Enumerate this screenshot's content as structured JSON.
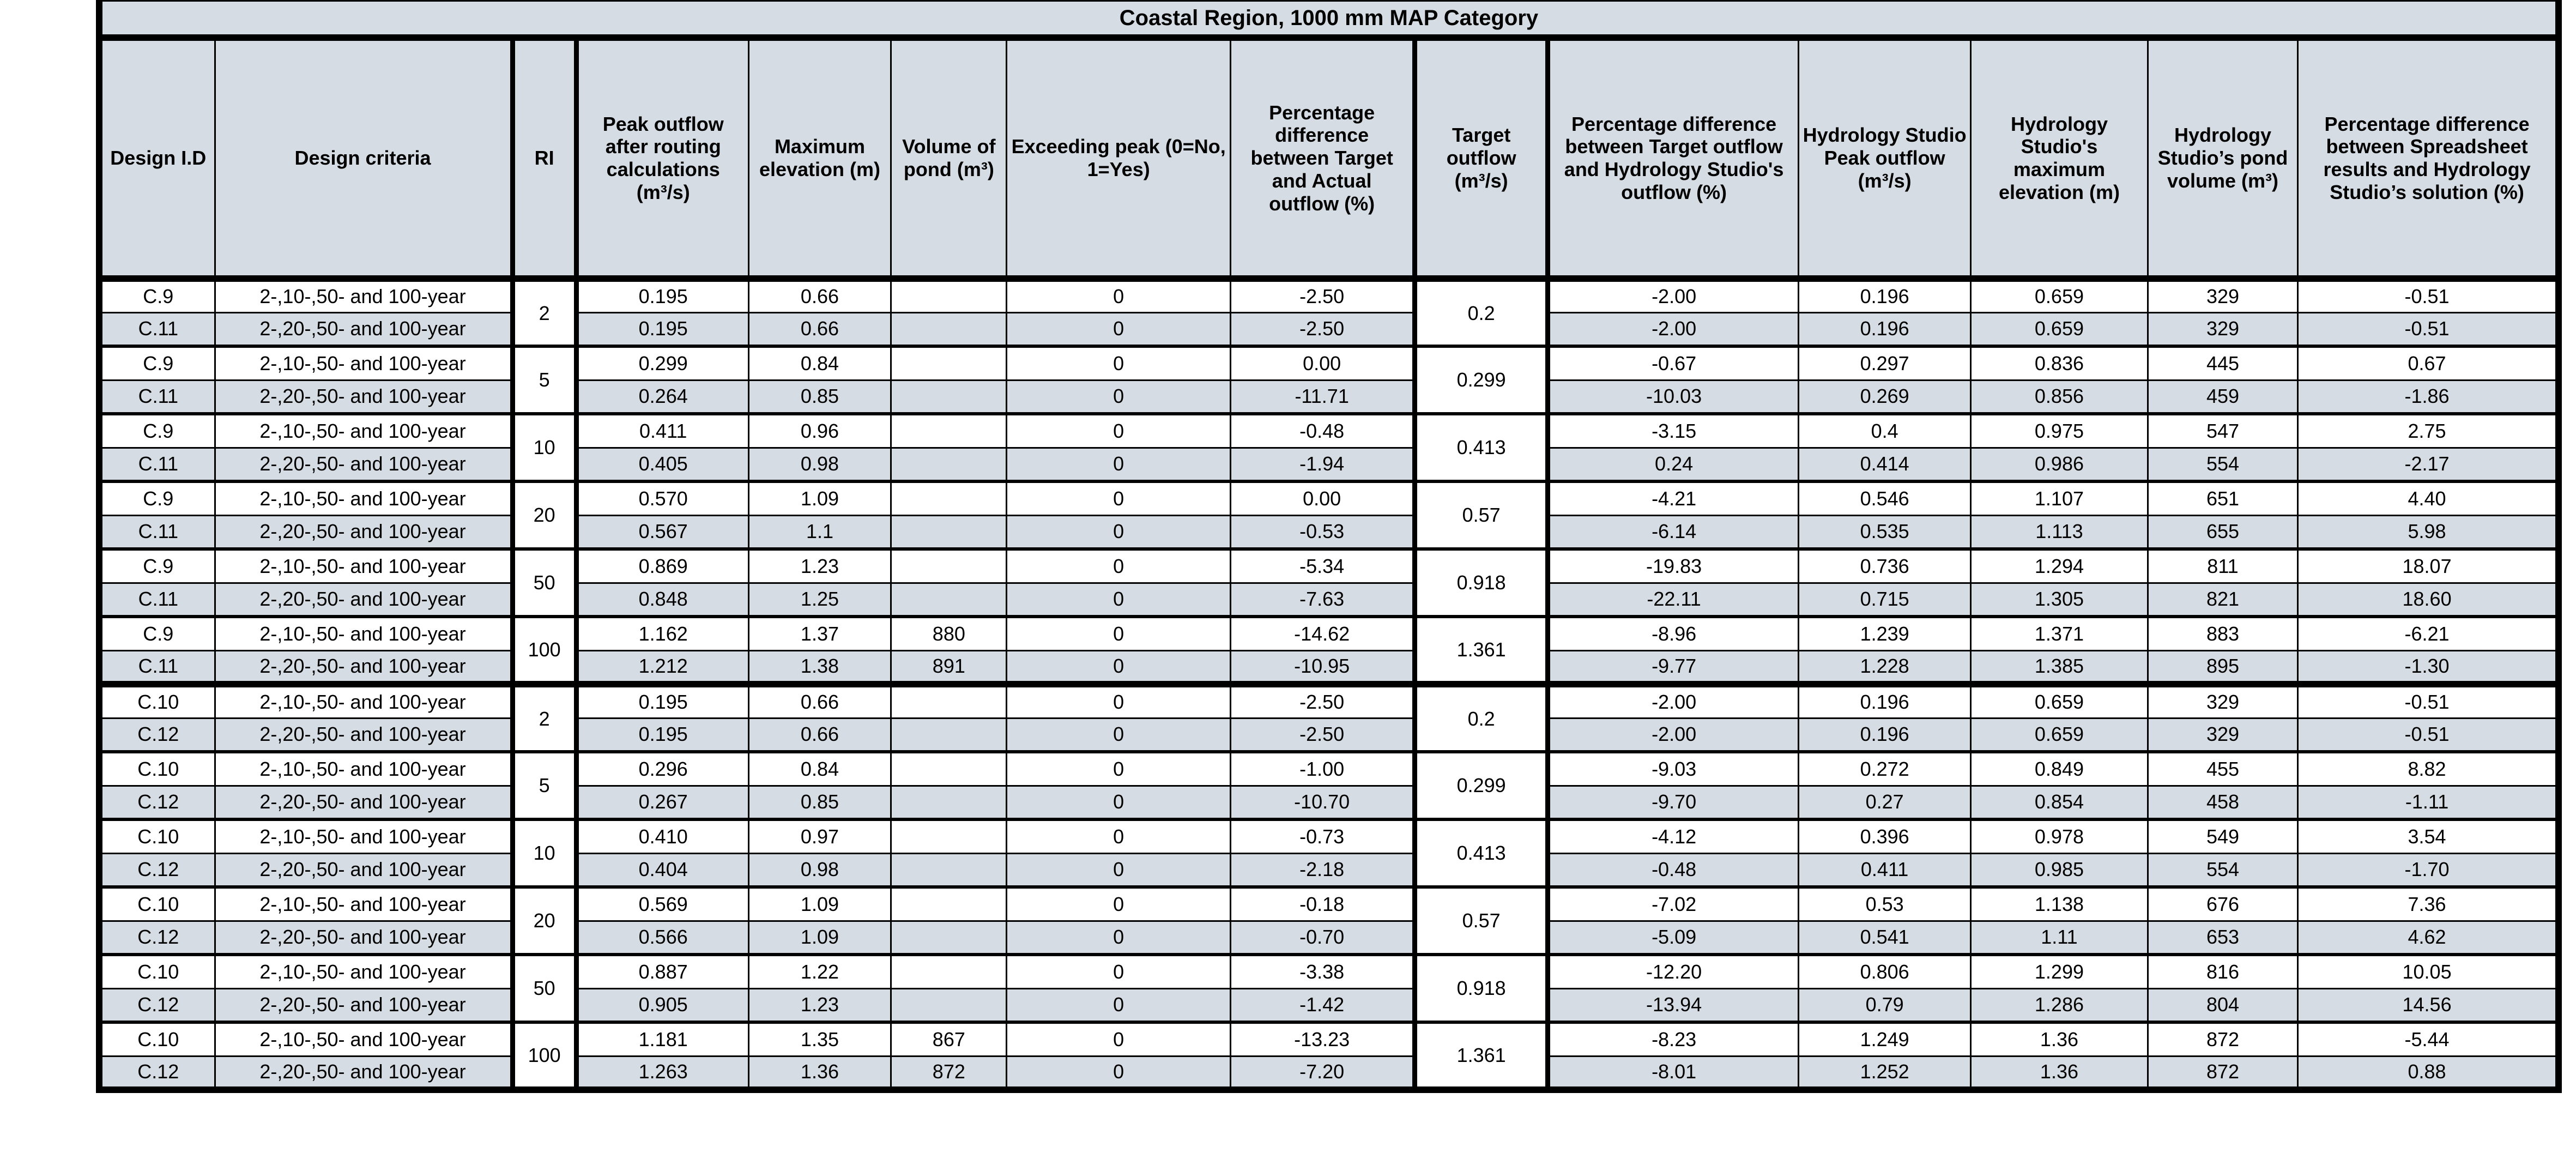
{
  "title": "Coastal Region, 1000 mm MAP Category",
  "colors": {
    "band_fill": "#d6dce4",
    "row_alt_white": "#ffffff",
    "border": "#000000"
  },
  "table": {
    "columns": [
      {
        "label": "Design I.D"
      },
      {
        "label": "Design criteria"
      },
      {
        "label": "RI"
      },
      {
        "label": "Peak outflow after routing calculations (m³/s)"
      },
      {
        "label": "Maximum elevation (m)"
      },
      {
        "label": "Volume of pond (m³)"
      },
      {
        "label": "Exceeding peak (0=No, 1=Yes)"
      },
      {
        "label": "Percentage difference between Target and Actual outflow (%)"
      },
      {
        "label": "Target outflow (m³/s)"
      },
      {
        "label": "Percentage difference between Target outflow and Hydrology Studio's outflow (%)"
      },
      {
        "label": "Hydrology Studio Peak outflow (m³/s)"
      },
      {
        "label": "Hydrology Studio's maximum elevation (m)"
      },
      {
        "label": "Hydrology Studio’s pond volume (m³)"
      },
      {
        "label": "Percentage difference between Spreadsheet results and Hydrology Studio’s solution (%)"
      }
    ],
    "blocks": [
      {
        "groups": [
          {
            "ri": "2",
            "target_outflow": "0.2",
            "rows": [
              {
                "design_id": "C.9",
                "criteria": "2-,10-,50- and 100-year",
                "peak_outflow": "0.195",
                "max_elevation": "0.66",
                "pond_volume": "",
                "exceeding_peak": "0",
                "pct_diff_target_actual": "-2.50",
                "pct_diff_target_hs": "-2.00",
                "hs_peak_outflow": "0.196",
                "hs_max_elevation": "0.659",
                "hs_pond_volume": "329",
                "pct_diff_spreadsheet_hs": "-0.51"
              },
              {
                "design_id": "C.11",
                "criteria": "2-,20-,50- and 100-year",
                "peak_outflow": "0.195",
                "max_elevation": "0.66",
                "pond_volume": "",
                "exceeding_peak": "0",
                "pct_diff_target_actual": "-2.50",
                "pct_diff_target_hs": "-2.00",
                "hs_peak_outflow": "0.196",
                "hs_max_elevation": "0.659",
                "hs_pond_volume": "329",
                "pct_diff_spreadsheet_hs": "-0.51"
              }
            ]
          },
          {
            "ri": "5",
            "target_outflow": "0.299",
            "rows": [
              {
                "design_id": "C.9",
                "criteria": "2-,10-,50- and 100-year",
                "peak_outflow": "0.299",
                "max_elevation": "0.84",
                "pond_volume": "",
                "exceeding_peak": "0",
                "pct_diff_target_actual": "0.00",
                "pct_diff_target_hs": "-0.67",
                "hs_peak_outflow": "0.297",
                "hs_max_elevation": "0.836",
                "hs_pond_volume": "445",
                "pct_diff_spreadsheet_hs": "0.67"
              },
              {
                "design_id": "C.11",
                "criteria": "2-,20-,50- and 100-year",
                "peak_outflow": "0.264",
                "max_elevation": "0.85",
                "pond_volume": "",
                "exceeding_peak": "0",
                "pct_diff_target_actual": "-11.71",
                "pct_diff_target_hs": "-10.03",
                "hs_peak_outflow": "0.269",
                "hs_max_elevation": "0.856",
                "hs_pond_volume": "459",
                "pct_diff_spreadsheet_hs": "-1.86"
              }
            ]
          },
          {
            "ri": "10",
            "target_outflow": "0.413",
            "rows": [
              {
                "design_id": "C.9",
                "criteria": "2-,10-,50- and 100-year",
                "peak_outflow": "0.411",
                "max_elevation": "0.96",
                "pond_volume": "",
                "exceeding_peak": "0",
                "pct_diff_target_actual": "-0.48",
                "pct_diff_target_hs": "-3.15",
                "hs_peak_outflow": "0.4",
                "hs_max_elevation": "0.975",
                "hs_pond_volume": "547",
                "pct_diff_spreadsheet_hs": "2.75"
              },
              {
                "design_id": "C.11",
                "criteria": "2-,20-,50- and 100-year",
                "peak_outflow": "0.405",
                "max_elevation": "0.98",
                "pond_volume": "",
                "exceeding_peak": "0",
                "pct_diff_target_actual": "-1.94",
                "pct_diff_target_hs": "0.24",
                "hs_peak_outflow": "0.414",
                "hs_max_elevation": "0.986",
                "hs_pond_volume": "554",
                "pct_diff_spreadsheet_hs": "-2.17"
              }
            ]
          },
          {
            "ri": "20",
            "target_outflow": "0.57",
            "rows": [
              {
                "design_id": "C.9",
                "criteria": "2-,10-,50- and 100-year",
                "peak_outflow": "0.570",
                "max_elevation": "1.09",
                "pond_volume": "",
                "exceeding_peak": "0",
                "pct_diff_target_actual": "0.00",
                "pct_diff_target_hs": "-4.21",
                "hs_peak_outflow": "0.546",
                "hs_max_elevation": "1.107",
                "hs_pond_volume": "651",
                "pct_diff_spreadsheet_hs": "4.40"
              },
              {
                "design_id": "C.11",
                "criteria": "2-,20-,50- and 100-year",
                "peak_outflow": "0.567",
                "max_elevation": "1.1",
                "pond_volume": "",
                "exceeding_peak": "0",
                "pct_diff_target_actual": "-0.53",
                "pct_diff_target_hs": "-6.14",
                "hs_peak_outflow": "0.535",
                "hs_max_elevation": "1.113",
                "hs_pond_volume": "655",
                "pct_diff_spreadsheet_hs": "5.98"
              }
            ]
          },
          {
            "ri": "50",
            "target_outflow": "0.918",
            "rows": [
              {
                "design_id": "C.9",
                "criteria": "2-,10-,50- and 100-year",
                "peak_outflow": "0.869",
                "max_elevation": "1.23",
                "pond_volume": "",
                "exceeding_peak": "0",
                "pct_diff_target_actual": "-5.34",
                "pct_diff_target_hs": "-19.83",
                "hs_peak_outflow": "0.736",
                "hs_max_elevation": "1.294",
                "hs_pond_volume": "811",
                "pct_diff_spreadsheet_hs": "18.07"
              },
              {
                "design_id": "C.11",
                "criteria": "2-,20-,50- and 100-year",
                "peak_outflow": "0.848",
                "max_elevation": "1.25",
                "pond_volume": "",
                "exceeding_peak": "0",
                "pct_diff_target_actual": "-7.63",
                "pct_diff_target_hs": "-22.11",
                "hs_peak_outflow": "0.715",
                "hs_max_elevation": "1.305",
                "hs_pond_volume": "821",
                "pct_diff_spreadsheet_hs": "18.60"
              }
            ]
          },
          {
            "ri": "100",
            "target_outflow": "1.361",
            "rows": [
              {
                "design_id": "C.9",
                "criteria": "2-,10-,50- and 100-year",
                "peak_outflow": "1.162",
                "max_elevation": "1.37",
                "pond_volume": "880",
                "exceeding_peak": "0",
                "pct_diff_target_actual": "-14.62",
                "pct_diff_target_hs": "-8.96",
                "hs_peak_outflow": "1.239",
                "hs_max_elevation": "1.371",
                "hs_pond_volume": "883",
                "pct_diff_spreadsheet_hs": "-6.21"
              },
              {
                "design_id": "C.11",
                "criteria": "2-,20-,50- and 100-year",
                "peak_outflow": "1.212",
                "max_elevation": "1.38",
                "pond_volume": "891",
                "exceeding_peak": "0",
                "pct_diff_target_actual": "-10.95",
                "pct_diff_target_hs": "-9.77",
                "hs_peak_outflow": "1.228",
                "hs_max_elevation": "1.385",
                "hs_pond_volume": "895",
                "pct_diff_spreadsheet_hs": "-1.30"
              }
            ]
          }
        ]
      },
      {
        "groups": [
          {
            "ri": "2",
            "target_outflow": "0.2",
            "rows": [
              {
                "design_id": "C.10",
                "criteria": "2-,10-,50- and 100-year",
                "peak_outflow": "0.195",
                "max_elevation": "0.66",
                "pond_volume": "",
                "exceeding_peak": "0",
                "pct_diff_target_actual": "-2.50",
                "pct_diff_target_hs": "-2.00",
                "hs_peak_outflow": "0.196",
                "hs_max_elevation": "0.659",
                "hs_pond_volume": "329",
                "pct_diff_spreadsheet_hs": "-0.51"
              },
              {
                "design_id": "C.12",
                "criteria": "2-,20-,50- and 100-year",
                "peak_outflow": "0.195",
                "max_elevation": "0.66",
                "pond_volume": "",
                "exceeding_peak": "0",
                "pct_diff_target_actual": "-2.50",
                "pct_diff_target_hs": "-2.00",
                "hs_peak_outflow": "0.196",
                "hs_max_elevation": "0.659",
                "hs_pond_volume": "329",
                "pct_diff_spreadsheet_hs": "-0.51"
              }
            ]
          },
          {
            "ri": "5",
            "target_outflow": "0.299",
            "rows": [
              {
                "design_id": "C.10",
                "criteria": "2-,10-,50- and 100-year",
                "peak_outflow": "0.296",
                "max_elevation": "0.84",
                "pond_volume": "",
                "exceeding_peak": "0",
                "pct_diff_target_actual": "-1.00",
                "pct_diff_target_hs": "-9.03",
                "hs_peak_outflow": "0.272",
                "hs_max_elevation": "0.849",
                "hs_pond_volume": "455",
                "pct_diff_spreadsheet_hs": "8.82"
              },
              {
                "design_id": "C.12",
                "criteria": "2-,20-,50- and 100-year",
                "peak_outflow": "0.267",
                "max_elevation": "0.85",
                "pond_volume": "",
                "exceeding_peak": "0",
                "pct_diff_target_actual": "-10.70",
                "pct_diff_target_hs": "-9.70",
                "hs_peak_outflow": "0.27",
                "hs_max_elevation": "0.854",
                "hs_pond_volume": "458",
                "pct_diff_spreadsheet_hs": "-1.11"
              }
            ]
          },
          {
            "ri": "10",
            "target_outflow": "0.413",
            "rows": [
              {
                "design_id": "C.10",
                "criteria": "2-,10-,50- and 100-year",
                "peak_outflow": "0.410",
                "max_elevation": "0.97",
                "pond_volume": "",
                "exceeding_peak": "0",
                "pct_diff_target_actual": "-0.73",
                "pct_diff_target_hs": "-4.12",
                "hs_peak_outflow": "0.396",
                "hs_max_elevation": "0.978",
                "hs_pond_volume": "549",
                "pct_diff_spreadsheet_hs": "3.54"
              },
              {
                "design_id": "C.12",
                "criteria": "2-,20-,50- and 100-year",
                "peak_outflow": "0.404",
                "max_elevation": "0.98",
                "pond_volume": "",
                "exceeding_peak": "0",
                "pct_diff_target_actual": "-2.18",
                "pct_diff_target_hs": "-0.48",
                "hs_peak_outflow": "0.411",
                "hs_max_elevation": "0.985",
                "hs_pond_volume": "554",
                "pct_diff_spreadsheet_hs": "-1.70"
              }
            ]
          },
          {
            "ri": "20",
            "target_outflow": "0.57",
            "rows": [
              {
                "design_id": "C.10",
                "criteria": "2-,10-,50- and 100-year",
                "peak_outflow": "0.569",
                "max_elevation": "1.09",
                "pond_volume": "",
                "exceeding_peak": "0",
                "pct_diff_target_actual": "-0.18",
                "pct_diff_target_hs": "-7.02",
                "hs_peak_outflow": "0.53",
                "hs_max_elevation": "1.138",
                "hs_pond_volume": "676",
                "pct_diff_spreadsheet_hs": "7.36"
              },
              {
                "design_id": "C.12",
                "criteria": "2-,20-,50- and 100-year",
                "peak_outflow": "0.566",
                "max_elevation": "1.09",
                "pond_volume": "",
                "exceeding_peak": "0",
                "pct_diff_target_actual": "-0.70",
                "pct_diff_target_hs": "-5.09",
                "hs_peak_outflow": "0.541",
                "hs_max_elevation": "1.11",
                "hs_pond_volume": "653",
                "pct_diff_spreadsheet_hs": "4.62"
              }
            ]
          },
          {
            "ri": "50",
            "target_outflow": "0.918",
            "rows": [
              {
                "design_id": "C.10",
                "criteria": "2-,10-,50- and 100-year",
                "peak_outflow": "0.887",
                "max_elevation": "1.22",
                "pond_volume": "",
                "exceeding_peak": "0",
                "pct_diff_target_actual": "-3.38",
                "pct_diff_target_hs": "-12.20",
                "hs_peak_outflow": "0.806",
                "hs_max_elevation": "1.299",
                "hs_pond_volume": "816",
                "pct_diff_spreadsheet_hs": "10.05"
              },
              {
                "design_id": "C.12",
                "criteria": "2-,20-,50- and 100-year",
                "peak_outflow": "0.905",
                "max_elevation": "1.23",
                "pond_volume": "",
                "exceeding_peak": "0",
                "pct_diff_target_actual": "-1.42",
                "pct_diff_target_hs": "-13.94",
                "hs_peak_outflow": "0.79",
                "hs_max_elevation": "1.286",
                "hs_pond_volume": "804",
                "pct_diff_spreadsheet_hs": "14.56"
              }
            ]
          },
          {
            "ri": "100",
            "target_outflow": "1.361",
            "rows": [
              {
                "design_id": "C.10",
                "criteria": "2-,10-,50- and 100-year",
                "peak_outflow": "1.181",
                "max_elevation": "1.35",
                "pond_volume": "867",
                "exceeding_peak": "0",
                "pct_diff_target_actual": "-13.23",
                "pct_diff_target_hs": "-8.23",
                "hs_peak_outflow": "1.249",
                "hs_max_elevation": "1.36",
                "hs_pond_volume": "872",
                "pct_diff_spreadsheet_hs": "-5.44"
              },
              {
                "design_id": "C.12",
                "criteria": "2-,20-,50- and 100-year",
                "peak_outflow": "1.263",
                "max_elevation": "1.36",
                "pond_volume": "872",
                "exceeding_peak": "0",
                "pct_diff_target_actual": "-7.20",
                "pct_diff_target_hs": "-8.01",
                "hs_peak_outflow": "1.252",
                "hs_max_elevation": "1.36",
                "hs_pond_volume": "872",
                "pct_diff_spreadsheet_hs": "0.88"
              }
            ]
          }
        ]
      }
    ]
  }
}
